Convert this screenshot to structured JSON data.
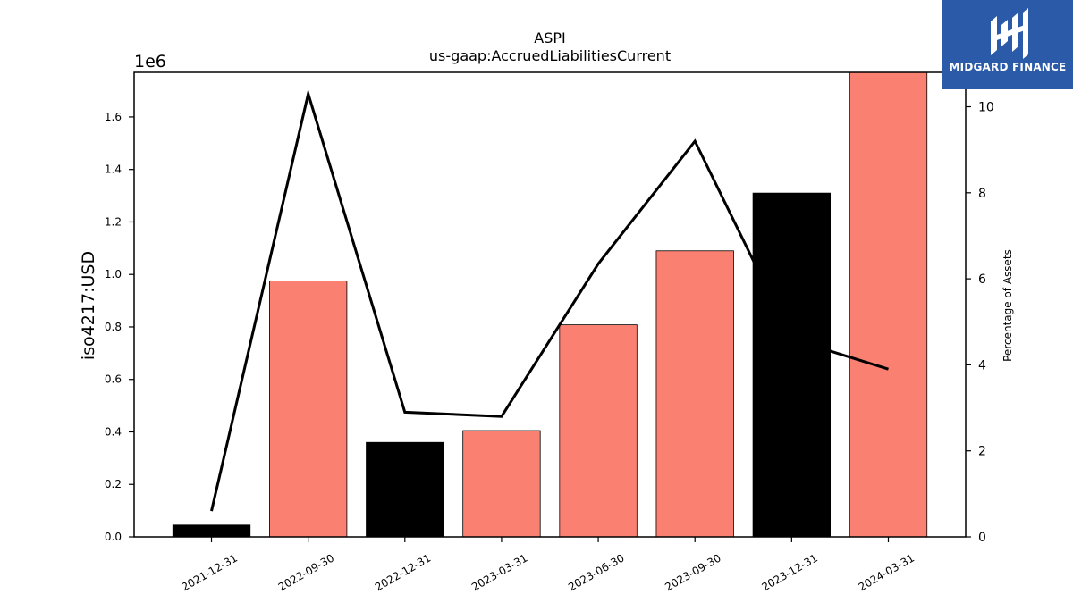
{
  "brand": {
    "name": "MIDGARD FINANCE",
    "logo_icon": "midgard-finance-logo-icon",
    "background_color": "#2b5aa8"
  },
  "chart_data": {
    "type": "bar",
    "title": "ASPI",
    "subtitle": "us-gaap:AccruedLiabilitiesCurrent",
    "ylabel": "iso4217:USD",
    "y2label": "Percentage of Assets",
    "y_offset_label": "1e6",
    "categories": [
      "2021-12-31",
      "2022-09-30",
      "2022-12-31",
      "2023-03-31",
      "2023-06-30",
      "2023-09-30",
      "2023-12-31",
      "2024-03-31"
    ],
    "series": [
      {
        "type": "bar",
        "axis": "left",
        "values": [
          45000,
          975000,
          360000,
          405000,
          808000,
          1090000,
          1310000,
          1770000
        ],
        "colors": [
          "#000000",
          "#fa8072",
          "#000000",
          "#fa8072",
          "#fa8072",
          "#fa8072",
          "#000000",
          "#fa8072"
        ]
      },
      {
        "type": "line",
        "axis": "right",
        "color": "#000000",
        "values": [
          0.6,
          10.3,
          2.9,
          2.8,
          6.35,
          9.2,
          4.6,
          3.9
        ]
      }
    ],
    "y_ticks": [
      "0.0",
      "0.2",
      "0.4",
      "0.6",
      "0.8",
      "1.0",
      "1.2",
      "1.4",
      "1.6"
    ],
    "y2_ticks": [
      "0",
      "2",
      "4",
      "6",
      "8",
      "10"
    ],
    "ylim": [
      0,
      1770000
    ],
    "y2lim": [
      0,
      10.8
    ],
    "grid": false
  }
}
